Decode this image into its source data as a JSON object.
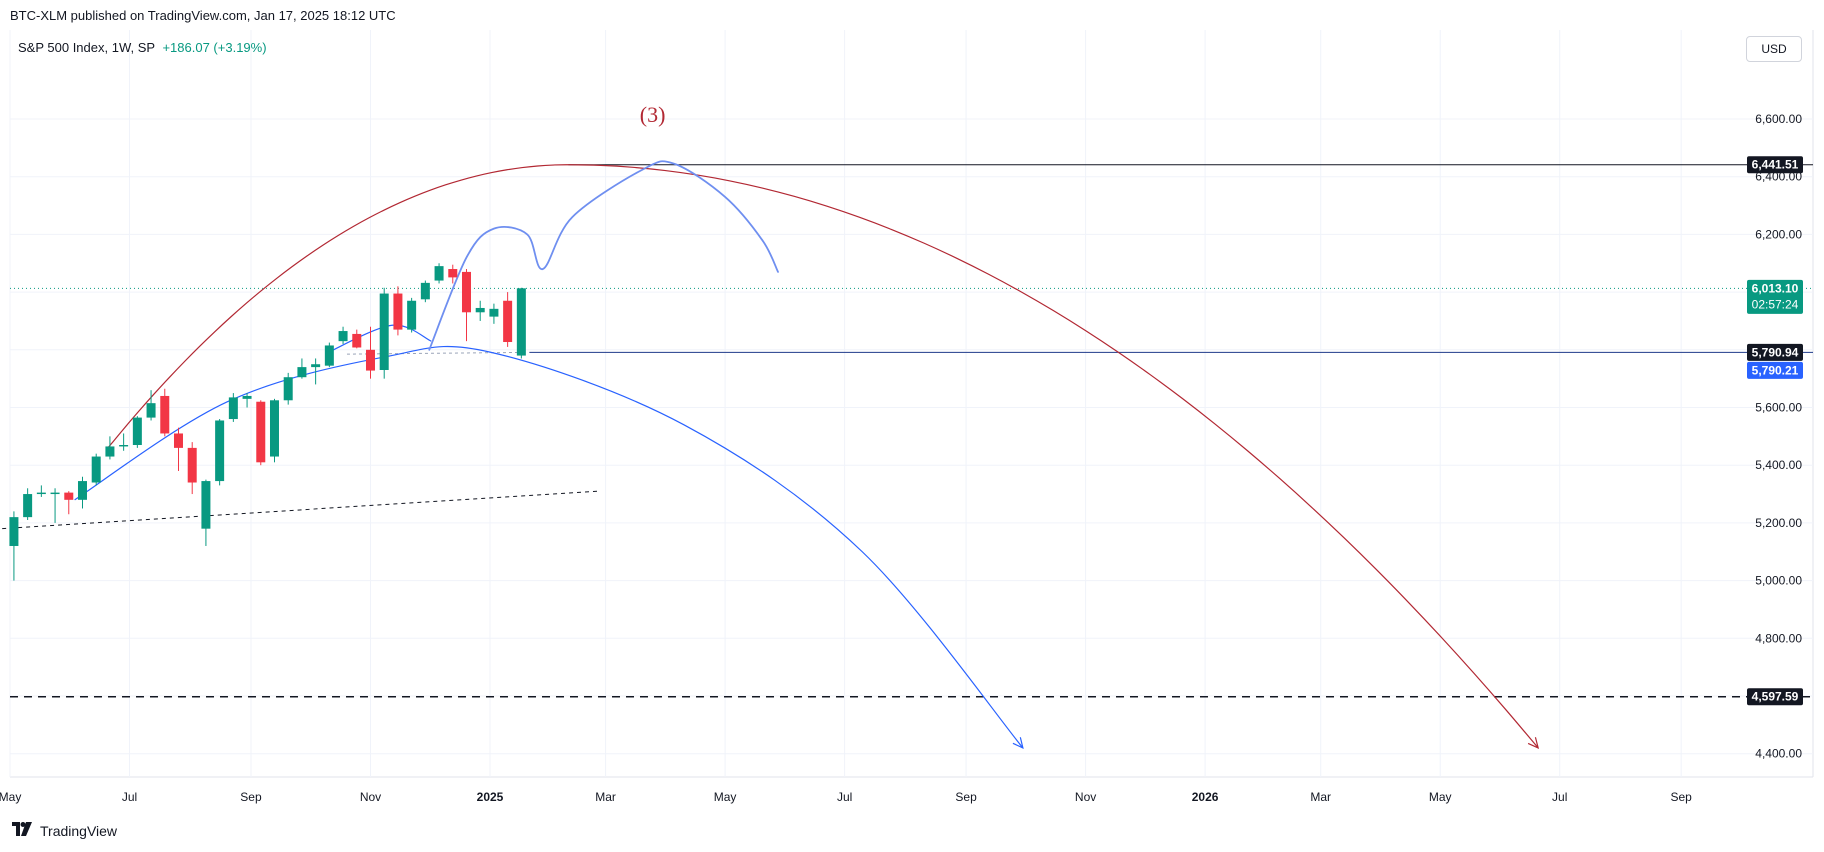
{
  "header": {
    "published": "BTC-XLM published on TradingView.com, Jan 17, 2025 18:12 UTC"
  },
  "legend": {
    "symbol": "S&P 500 Index, 1W, SP",
    "change": "+186.07 (+3.19%)"
  },
  "currency": "USD",
  "footer": {
    "brand": "TradingView",
    "logo_icon": "tradingview-logo-icon"
  },
  "annotation": {
    "wave_label": "(3)"
  },
  "price_labels": {
    "high_line": "6,441.51",
    "last_price": "6,013.10",
    "countdown": "02:57:24",
    "support_a": "5,790.94",
    "support_b": "5,790.21",
    "target": "4,597.59"
  },
  "colors": {
    "up": "#089981",
    "down": "#f23645",
    "red_curve": "#b22833",
    "blue_curve": "#2962ff",
    "blue_wave": "#6f8ff0",
    "text": "#131722",
    "grid": "#f0f3fa",
    "label_dark": "#131722",
    "label_green": "#089981",
    "label_blue": "#2962ff"
  },
  "chart_data": {
    "type": "candlestick",
    "title": "S&P 500 Index, 1W, SP",
    "ylim": [
      4300,
      6800
    ],
    "y_ticks": [
      "6,600.00",
      "6,400.00",
      "6,200.00",
      "6,000.00",
      "5,800.00",
      "5,600.00",
      "5,400.00",
      "5,200.00",
      "5,000.00",
      "4,800.00",
      "4,600.00",
      "4,400.00"
    ],
    "y_tick_values": [
      6600,
      6400,
      6200,
      6000,
      5800,
      5600,
      5400,
      5200,
      5000,
      4800,
      4600,
      4400
    ],
    "x_ticks": [
      {
        "label": "May",
        "date": "2024-05-01"
      },
      {
        "label": "Jul",
        "date": "2024-07-01"
      },
      {
        "label": "Sep",
        "date": "2024-09-01"
      },
      {
        "label": "Nov",
        "date": "2024-11-01"
      },
      {
        "label": "2025",
        "date": "2025-01-01",
        "bold": true
      },
      {
        "label": "Mar",
        "date": "2025-03-01"
      },
      {
        "label": "May",
        "date": "2025-05-01"
      },
      {
        "label": "Jul",
        "date": "2025-07-01"
      },
      {
        "label": "Sep",
        "date": "2025-09-01"
      },
      {
        "label": "Nov",
        "date": "2025-11-01"
      },
      {
        "label": "2026",
        "date": "2026-01-01",
        "bold": true
      },
      {
        "label": "Mar",
        "date": "2026-03-01"
      },
      {
        "label": "May",
        "date": "2026-05-01"
      },
      {
        "label": "Jul",
        "date": "2026-07-01"
      },
      {
        "label": "Sep",
        "date": "2026-09-01"
      }
    ],
    "candles": [
      {
        "d": "2024-05-03",
        "o": 5120,
        "h": 5240,
        "l": 5000,
        "c": 5220
      },
      {
        "d": "2024-05-10",
        "o": 5220,
        "h": 5320,
        "l": 5210,
        "c": 5300
      },
      {
        "d": "2024-05-17",
        "o": 5300,
        "h": 5330,
        "l": 5290,
        "c": 5305
      },
      {
        "d": "2024-05-24",
        "o": 5300,
        "h": 5320,
        "l": 5200,
        "c": 5305
      },
      {
        "d": "2024-05-31",
        "o": 5305,
        "h": 5310,
        "l": 5230,
        "c": 5280
      },
      {
        "d": "2024-06-07",
        "o": 5280,
        "h": 5360,
        "l": 5250,
        "c": 5345
      },
      {
        "d": "2024-06-14",
        "o": 5340,
        "h": 5440,
        "l": 5330,
        "c": 5430
      },
      {
        "d": "2024-06-21",
        "o": 5430,
        "h": 5500,
        "l": 5420,
        "c": 5465
      },
      {
        "d": "2024-06-28",
        "o": 5465,
        "h": 5510,
        "l": 5450,
        "c": 5470
      },
      {
        "d": "2024-07-05",
        "o": 5470,
        "h": 5570,
        "l": 5460,
        "c": 5565
      },
      {
        "d": "2024-07-12",
        "o": 5565,
        "h": 5660,
        "l": 5555,
        "c": 5615
      },
      {
        "d": "2024-07-19",
        "o": 5640,
        "h": 5665,
        "l": 5500,
        "c": 5510
      },
      {
        "d": "2024-07-26",
        "o": 5510,
        "h": 5530,
        "l": 5380,
        "c": 5460
      },
      {
        "d": "2024-08-02",
        "o": 5460,
        "h": 5480,
        "l": 5300,
        "c": 5340
      },
      {
        "d": "2024-08-09",
        "o": 5180,
        "h": 5350,
        "l": 5120,
        "c": 5345
      },
      {
        "d": "2024-08-16",
        "o": 5345,
        "h": 5560,
        "l": 5330,
        "c": 5555
      },
      {
        "d": "2024-08-23",
        "o": 5560,
        "h": 5650,
        "l": 5550,
        "c": 5635
      },
      {
        "d": "2024-08-30",
        "o": 5630,
        "h": 5650,
        "l": 5600,
        "c": 5640
      },
      {
        "d": "2024-09-06",
        "o": 5620,
        "h": 5625,
        "l": 5400,
        "c": 5410
      },
      {
        "d": "2024-09-13",
        "o": 5430,
        "h": 5630,
        "l": 5410,
        "c": 5625
      },
      {
        "d": "2024-09-20",
        "o": 5625,
        "h": 5720,
        "l": 5610,
        "c": 5705
      },
      {
        "d": "2024-09-27",
        "o": 5705,
        "h": 5770,
        "l": 5700,
        "c": 5740
      },
      {
        "d": "2024-10-04",
        "o": 5740,
        "h": 5770,
        "l": 5680,
        "c": 5750
      },
      {
        "d": "2024-10-11",
        "o": 5745,
        "h": 5825,
        "l": 5740,
        "c": 5815
      },
      {
        "d": "2024-10-18",
        "o": 5830,
        "h": 5880,
        "l": 5820,
        "c": 5865
      },
      {
        "d": "2024-10-25",
        "o": 5855,
        "h": 5870,
        "l": 5805,
        "c": 5808
      },
      {
        "d": "2024-11-01",
        "o": 5800,
        "h": 5880,
        "l": 5700,
        "c": 5728
      },
      {
        "d": "2024-11-08",
        "o": 5730,
        "h": 6015,
        "l": 5700,
        "c": 5995
      },
      {
        "d": "2024-11-15",
        "o": 5995,
        "h": 6020,
        "l": 5850,
        "c": 5870
      },
      {
        "d": "2024-11-22",
        "o": 5870,
        "h": 5980,
        "l": 5860,
        "c": 5970
      },
      {
        "d": "2024-11-29",
        "o": 5975,
        "h": 6040,
        "l": 5965,
        "c": 6032
      },
      {
        "d": "2024-12-06",
        "o": 6040,
        "h": 6100,
        "l": 6030,
        "c": 6090
      },
      {
        "d": "2024-12-13",
        "o": 6080,
        "h": 6095,
        "l": 6030,
        "c": 6051
      },
      {
        "d": "2024-12-20",
        "o": 6070,
        "h": 6080,
        "l": 5830,
        "c": 5930
      },
      {
        "d": "2024-12-27",
        "o": 5930,
        "h": 5970,
        "l": 5900,
        "c": 5945
      },
      {
        "d": "2025-01-03",
        "o": 5915,
        "h": 5960,
        "l": 5890,
        "c": 5942
      },
      {
        "d": "2025-01-10",
        "o": 5970,
        "h": 6000,
        "l": 5810,
        "c": 5827
      },
      {
        "d": "2025-01-17",
        "o": 5780,
        "h": 6015,
        "l": 5770,
        "c": 6013.1
      }
    ],
    "levels": [
      {
        "name": "high_line",
        "price": 6441.51,
        "style": "solid",
        "color": "#131722",
        "from": "2025-02-10"
      },
      {
        "name": "support",
        "price": 5790.94,
        "style": "solid",
        "color": "#1e3a8a",
        "from": "2025-01-17"
      },
      {
        "name": "target",
        "price": 4597.59,
        "style": "dashed",
        "color": "#131722",
        "from": "2024-04-27"
      },
      {
        "name": "last_price",
        "price": 6013.1,
        "style": "dotted",
        "color": "#089981",
        "from": "2024-04-27"
      }
    ],
    "red_arc": {
      "start": [
        "2024-06-20",
        5460
      ],
      "peak": [
        "2025-02-10",
        6441.51
      ],
      "end": [
        "2026-06-20",
        4420
      ]
    },
    "blue_arc": [
      [
        "2024-06-03",
        5280
      ],
      [
        "2024-08-20",
        5620
      ],
      [
        "2024-11-08",
        5775
      ],
      [
        "2025-01-01",
        5792
      ],
      [
        "2025-04-10",
        5540
      ],
      [
        "2025-07-10",
        5100
      ],
      [
        "2025-09-30",
        4420
      ]
    ],
    "blue_small_arc": [
      [
        "2024-10-10",
        5790
      ],
      [
        "2024-11-12",
        5885
      ],
      [
        "2024-12-02",
        5830
      ]
    ],
    "blue_wave": [
      [
        "2024-12-01",
        5800
      ],
      [
        "2024-12-20",
        6120
      ],
      [
        "2025-01-03",
        6220
      ],
      [
        "2025-01-20",
        6200
      ],
      [
        "2025-01-28",
        6080
      ],
      [
        "2025-02-12",
        6260
      ],
      [
        "2025-03-20",
        6425
      ],
      [
        "2025-04-05",
        6445
      ],
      [
        "2025-05-01",
        6330
      ],
      [
        "2025-05-20",
        6180
      ],
      [
        "2025-05-28",
        6070
      ]
    ],
    "trendline": [
      [
        "2024-04-27",
        5180
      ],
      [
        "2025-02-25",
        5310
      ]
    ],
    "wave_label_position": [
      "2025-03-25",
      6590
    ]
  }
}
